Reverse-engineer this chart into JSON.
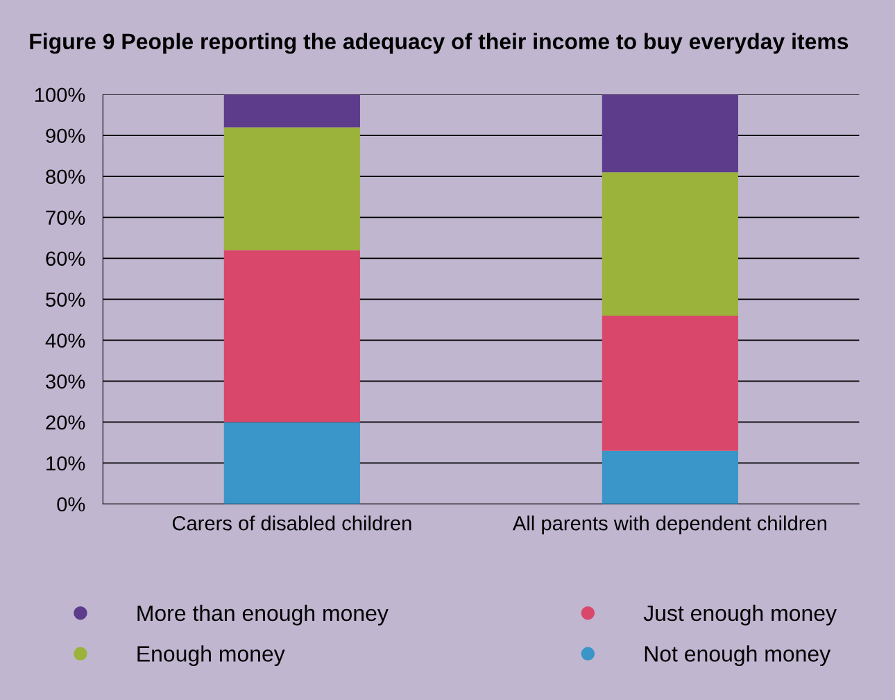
{
  "chart_data": {
    "type": "bar",
    "stacked": true,
    "title": "Figure 9 People reporting the adequacy of their income to buy everyday items",
    "categories": [
      "Carers of disabled children",
      "All parents with dependent children"
    ],
    "series": [
      {
        "name": "Not enough money",
        "color": "#3a96c8",
        "values": [
          20,
          13
        ]
      },
      {
        "name": "Just enough money",
        "color": "#d9486a",
        "values": [
          42,
          33
        ]
      },
      {
        "name": "Enough money",
        "color": "#9bb33a",
        "values": [
          30,
          35
        ]
      },
      {
        "name": "More than enough money",
        "color": "#5e3c8c",
        "values": [
          8,
          19
        ]
      }
    ],
    "ylim": [
      0,
      100
    ],
    "yticks": [
      {
        "value": 0,
        "label": "0%"
      },
      {
        "value": 10,
        "label": "10%"
      },
      {
        "value": 20,
        "label": "20%"
      },
      {
        "value": 30,
        "label": "30%"
      },
      {
        "value": 40,
        "label": "40%"
      },
      {
        "value": 50,
        "label": "50%"
      },
      {
        "value": 60,
        "label": "60%"
      },
      {
        "value": 70,
        "label": "70%"
      },
      {
        "value": 80,
        "label": "80%"
      },
      {
        "value": 90,
        "label": "90%"
      },
      {
        "value": 100,
        "label": "100%"
      }
    ],
    "grid": "y",
    "legend": "bottom"
  }
}
